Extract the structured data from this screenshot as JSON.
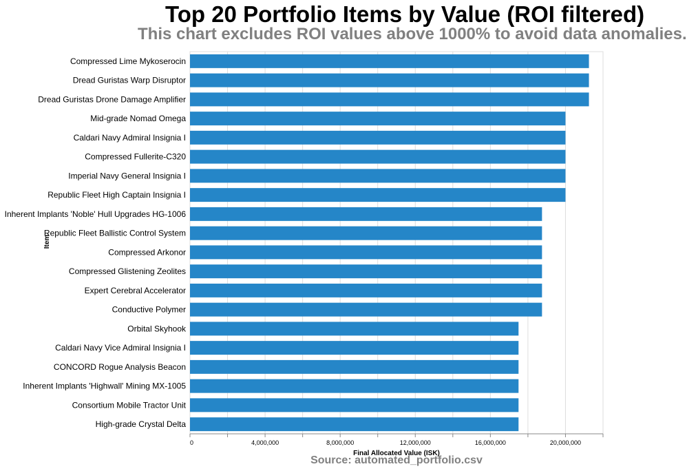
{
  "chart_data": {
    "type": "bar",
    "orientation": "horizontal",
    "title": "Top 20 Portfolio Items by Value (ROI filtered)",
    "subtitle": "This chart excludes ROI values above 1000% to avoid data anomalies.",
    "footer": "Source: automated_portfolio.csv",
    "xlabel": "Final Allocated Value (ISK)",
    "ylabel": "Item",
    "xlim": [
      0,
      22000000
    ],
    "x_ticks": [
      0,
      4000000,
      8000000,
      12000000,
      16000000,
      20000000
    ],
    "x_tick_labels": [
      "0",
      "4,000,000",
      "8,000,000",
      "12,000,000",
      "16,000,000",
      "20,000,000"
    ],
    "grid": true,
    "bar_color": "#2586c8",
    "categories": [
      "Compressed Lime Mykoserocin",
      "Dread Guristas Warp Disruptor",
      "Dread Guristas Drone Damage Amplifier",
      "Mid-grade Nomad Omega",
      "Caldari Navy Admiral Insignia I",
      "Compressed Fullerite-C320",
      "Imperial Navy General Insignia I",
      "Republic Fleet High Captain Insignia I",
      "Inherent Implants 'Noble' Hull Upgrades HG-1006",
      "Republic Fleet Ballistic Control System",
      "Compressed Arkonor",
      "Compressed Glistening Zeolites",
      "Expert Cerebral Accelerator",
      "Conductive Polymer",
      "Orbital Skyhook",
      "Caldari Navy Vice Admiral Insignia I",
      "CONCORD Rogue Analysis Beacon",
      "Inherent Implants 'Highwall' Mining MX-1005",
      "Consortium Mobile Tractor Unit",
      "High-grade Crystal Delta"
    ],
    "values": [
      21250000,
      21250000,
      21250000,
      20000000,
      20000000,
      20000000,
      20000000,
      20000000,
      18750000,
      18750000,
      18750000,
      18750000,
      18750000,
      18750000,
      17500000,
      17500000,
      17500000,
      17500000,
      17500000,
      17500000
    ]
  }
}
